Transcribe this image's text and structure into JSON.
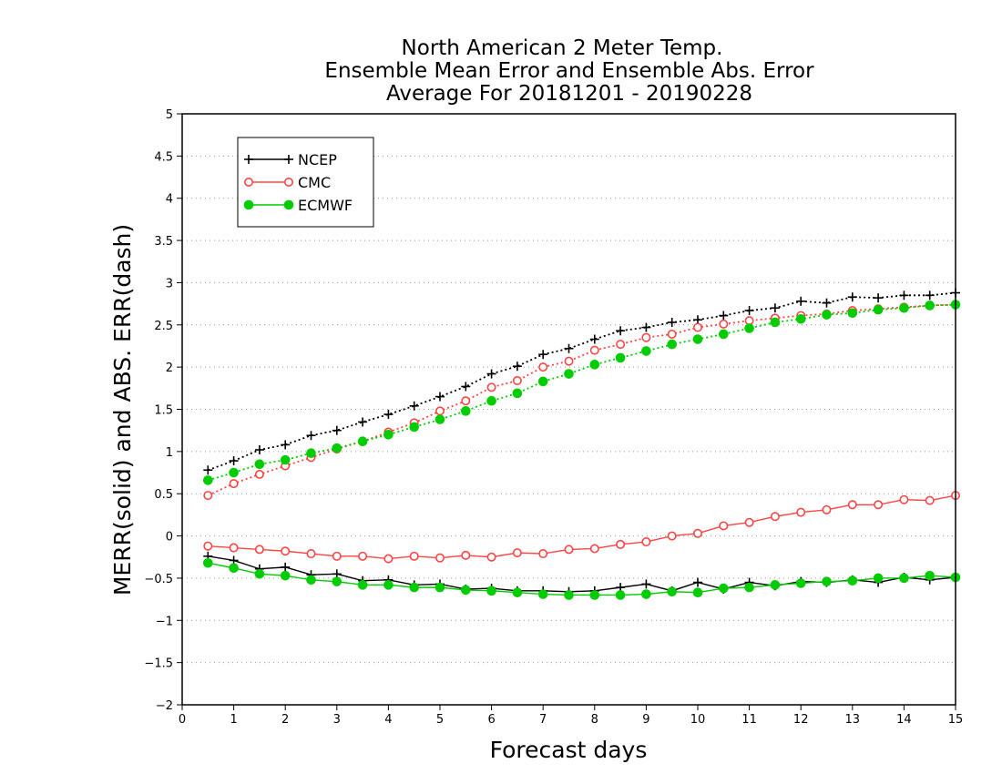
{
  "chart_data": {
    "type": "line",
    "title": [
      "North American 2 Meter Temp.",
      "Ensemble Mean Error and Ensemble Abs. Error",
      "Average For 20181201 - 20190228"
    ],
    "xlabel": "Forecast days",
    "ylabel": "MERR(solid) and ABS. ERR(dash)",
    "xlim": [
      0,
      15
    ],
    "ylim": [
      -2,
      5
    ],
    "xticks": [
      0,
      1,
      2,
      3,
      4,
      5,
      6,
      7,
      8,
      9,
      10,
      11,
      12,
      13,
      14,
      15
    ],
    "yticks": [
      -2,
      -1.5,
      -1,
      -0.5,
      0,
      0.5,
      1,
      1.5,
      2,
      2.5,
      3,
      3.5,
      4,
      4.5,
      5
    ],
    "ytick_labels": [
      "−2",
      "−1.5",
      "−1",
      "−0.5",
      "0",
      "0.5",
      "1",
      "1.5",
      "2",
      "2.5",
      "3",
      "3.5",
      "4",
      "4.5",
      "5"
    ],
    "grid": "horizontal dotted",
    "legend_position": "top-left",
    "x": [
      0.5,
      1,
      1.5,
      2,
      2.5,
      3,
      3.5,
      4,
      4.5,
      5,
      5.5,
      6,
      6.5,
      7,
      7.5,
      8,
      8.5,
      9,
      9.5,
      10,
      10.5,
      11,
      11.5,
      12,
      12.5,
      13,
      13.5,
      14,
      14.5,
      15
    ],
    "series": [
      {
        "name": "NCEP",
        "color": "#000000",
        "marker": "plus",
        "merr": [
          -0.24,
          -0.29,
          -0.39,
          -0.37,
          -0.46,
          -0.45,
          -0.53,
          -0.52,
          -0.58,
          -0.57,
          -0.63,
          -0.62,
          -0.65,
          -0.65,
          -0.66,
          -0.65,
          -0.61,
          -0.57,
          -0.65,
          -0.55,
          -0.63,
          -0.55,
          -0.59,
          -0.54,
          -0.55,
          -0.52,
          -0.55,
          -0.49,
          -0.52,
          -0.49
        ],
        "abs_err": [
          0.78,
          0.89,
          1.02,
          1.08,
          1.19,
          1.25,
          1.35,
          1.44,
          1.54,
          1.65,
          1.77,
          1.92,
          2.01,
          2.15,
          2.22,
          2.33,
          2.43,
          2.47,
          2.53,
          2.56,
          2.61,
          2.67,
          2.7,
          2.78,
          2.76,
          2.83,
          2.82,
          2.85,
          2.85,
          2.88
        ]
      },
      {
        "name": "CMC",
        "color": "#ff4444",
        "marker": "open-circle",
        "merr": [
          -0.12,
          -0.14,
          -0.16,
          -0.18,
          -0.21,
          -0.24,
          -0.24,
          -0.27,
          -0.24,
          -0.26,
          -0.23,
          -0.25,
          -0.2,
          -0.21,
          -0.16,
          -0.15,
          -0.1,
          -0.07,
          0.0,
          0.03,
          0.12,
          0.16,
          0.23,
          0.28,
          0.31,
          0.37,
          0.37,
          0.43,
          0.42,
          0.48
        ],
        "abs_err": [
          0.48,
          0.62,
          0.73,
          0.83,
          0.93,
          1.03,
          1.12,
          1.23,
          1.34,
          1.48,
          1.6,
          1.76,
          1.84,
          2.0,
          2.07,
          2.2,
          2.27,
          2.35,
          2.39,
          2.47,
          2.51,
          2.55,
          2.58,
          2.61,
          2.63,
          2.67,
          2.69,
          2.71,
          2.73,
          2.74
        ]
      },
      {
        "name": "ECMWF",
        "color": "#00cc00",
        "marker": "filled-circle",
        "merr": [
          -0.32,
          -0.38,
          -0.45,
          -0.47,
          -0.52,
          -0.54,
          -0.58,
          -0.58,
          -0.61,
          -0.61,
          -0.64,
          -0.65,
          -0.67,
          -0.69,
          -0.7,
          -0.7,
          -0.7,
          -0.69,
          -0.66,
          -0.67,
          -0.62,
          -0.61,
          -0.58,
          -0.56,
          -0.54,
          -0.53,
          -0.5,
          -0.5,
          -0.47,
          -0.49
        ],
        "abs_err": [
          0.66,
          0.75,
          0.85,
          0.9,
          0.98,
          1.04,
          1.12,
          1.2,
          1.29,
          1.38,
          1.48,
          1.6,
          1.69,
          1.83,
          1.92,
          2.03,
          2.11,
          2.19,
          2.27,
          2.33,
          2.39,
          2.46,
          2.53,
          2.57,
          2.62,
          2.64,
          2.68,
          2.7,
          2.73,
          2.74
        ]
      }
    ]
  }
}
